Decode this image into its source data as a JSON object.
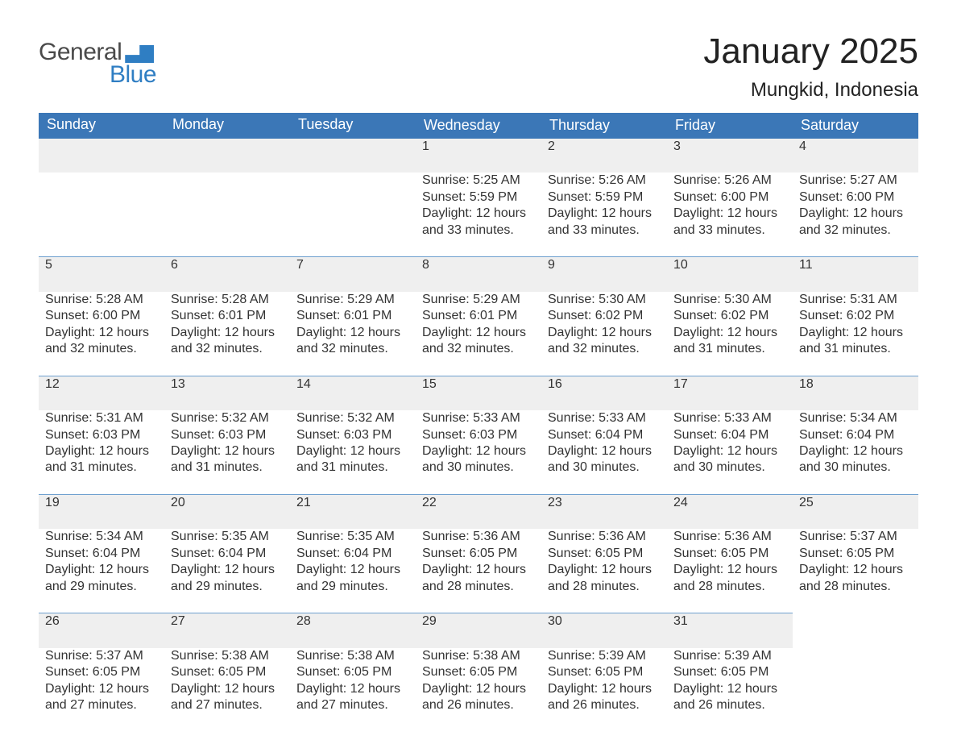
{
  "logo": {
    "word1": "General",
    "word2": "Blue"
  },
  "title": "January 2025",
  "location": "Mungkid, Indonesia",
  "colors": {
    "header_blue": "#3b77b7",
    "logo_blue": "#2f7ec3",
    "row_gray": "#efefef",
    "divider_blue": "#6fa0cf",
    "background": "#ffffff"
  },
  "fonts": {
    "title_size_pt": 33,
    "location_size_pt": 18,
    "header_size_pt": 14,
    "body_size_pt": 12
  },
  "weekday_headers": [
    "Sunday",
    "Monday",
    "Tuesday",
    "Wednesday",
    "Thursday",
    "Friday",
    "Saturday"
  ],
  "labels": {
    "sunrise": "Sunrise: ",
    "sunset": "Sunset: ",
    "daylight": "Daylight: "
  },
  "weeks": [
    [
      null,
      null,
      null,
      {
        "day": "1",
        "sunrise": "5:25 AM",
        "sunset": "5:59 PM",
        "daylight1": "12 hours",
        "daylight2": "and 33 minutes."
      },
      {
        "day": "2",
        "sunrise": "5:26 AM",
        "sunset": "5:59 PM",
        "daylight1": "12 hours",
        "daylight2": "and 33 minutes."
      },
      {
        "day": "3",
        "sunrise": "5:26 AM",
        "sunset": "6:00 PM",
        "daylight1": "12 hours",
        "daylight2": "and 33 minutes."
      },
      {
        "day": "4",
        "sunrise": "5:27 AM",
        "sunset": "6:00 PM",
        "daylight1": "12 hours",
        "daylight2": "and 32 minutes."
      }
    ],
    [
      {
        "day": "5",
        "sunrise": "5:28 AM",
        "sunset": "6:00 PM",
        "daylight1": "12 hours",
        "daylight2": "and 32 minutes."
      },
      {
        "day": "6",
        "sunrise": "5:28 AM",
        "sunset": "6:01 PM",
        "daylight1": "12 hours",
        "daylight2": "and 32 minutes."
      },
      {
        "day": "7",
        "sunrise": "5:29 AM",
        "sunset": "6:01 PM",
        "daylight1": "12 hours",
        "daylight2": "and 32 minutes."
      },
      {
        "day": "8",
        "sunrise": "5:29 AM",
        "sunset": "6:01 PM",
        "daylight1": "12 hours",
        "daylight2": "and 32 minutes."
      },
      {
        "day": "9",
        "sunrise": "5:30 AM",
        "sunset": "6:02 PM",
        "daylight1": "12 hours",
        "daylight2": "and 32 minutes."
      },
      {
        "day": "10",
        "sunrise": "5:30 AM",
        "sunset": "6:02 PM",
        "daylight1": "12 hours",
        "daylight2": "and 31 minutes."
      },
      {
        "day": "11",
        "sunrise": "5:31 AM",
        "sunset": "6:02 PM",
        "daylight1": "12 hours",
        "daylight2": "and 31 minutes."
      }
    ],
    [
      {
        "day": "12",
        "sunrise": "5:31 AM",
        "sunset": "6:03 PM",
        "daylight1": "12 hours",
        "daylight2": "and 31 minutes."
      },
      {
        "day": "13",
        "sunrise": "5:32 AM",
        "sunset": "6:03 PM",
        "daylight1": "12 hours",
        "daylight2": "and 31 minutes."
      },
      {
        "day": "14",
        "sunrise": "5:32 AM",
        "sunset": "6:03 PM",
        "daylight1": "12 hours",
        "daylight2": "and 31 minutes."
      },
      {
        "day": "15",
        "sunrise": "5:33 AM",
        "sunset": "6:03 PM",
        "daylight1": "12 hours",
        "daylight2": "and 30 minutes."
      },
      {
        "day": "16",
        "sunrise": "5:33 AM",
        "sunset": "6:04 PM",
        "daylight1": "12 hours",
        "daylight2": "and 30 minutes."
      },
      {
        "day": "17",
        "sunrise": "5:33 AM",
        "sunset": "6:04 PM",
        "daylight1": "12 hours",
        "daylight2": "and 30 minutes."
      },
      {
        "day": "18",
        "sunrise": "5:34 AM",
        "sunset": "6:04 PM",
        "daylight1": "12 hours",
        "daylight2": "and 30 minutes."
      }
    ],
    [
      {
        "day": "19",
        "sunrise": "5:34 AM",
        "sunset": "6:04 PM",
        "daylight1": "12 hours",
        "daylight2": "and 29 minutes."
      },
      {
        "day": "20",
        "sunrise": "5:35 AM",
        "sunset": "6:04 PM",
        "daylight1": "12 hours",
        "daylight2": "and 29 minutes."
      },
      {
        "day": "21",
        "sunrise": "5:35 AM",
        "sunset": "6:04 PM",
        "daylight1": "12 hours",
        "daylight2": "and 29 minutes."
      },
      {
        "day": "22",
        "sunrise": "5:36 AM",
        "sunset": "6:05 PM",
        "daylight1": "12 hours",
        "daylight2": "and 28 minutes."
      },
      {
        "day": "23",
        "sunrise": "5:36 AM",
        "sunset": "6:05 PM",
        "daylight1": "12 hours",
        "daylight2": "and 28 minutes."
      },
      {
        "day": "24",
        "sunrise": "5:36 AM",
        "sunset": "6:05 PM",
        "daylight1": "12 hours",
        "daylight2": "and 28 minutes."
      },
      {
        "day": "25",
        "sunrise": "5:37 AM",
        "sunset": "6:05 PM",
        "daylight1": "12 hours",
        "daylight2": "and 28 minutes."
      }
    ],
    [
      {
        "day": "26",
        "sunrise": "5:37 AM",
        "sunset": "6:05 PM",
        "daylight1": "12 hours",
        "daylight2": "and 27 minutes."
      },
      {
        "day": "27",
        "sunrise": "5:38 AM",
        "sunset": "6:05 PM",
        "daylight1": "12 hours",
        "daylight2": "and 27 minutes."
      },
      {
        "day": "28",
        "sunrise": "5:38 AM",
        "sunset": "6:05 PM",
        "daylight1": "12 hours",
        "daylight2": "and 27 minutes."
      },
      {
        "day": "29",
        "sunrise": "5:38 AM",
        "sunset": "6:05 PM",
        "daylight1": "12 hours",
        "daylight2": "and 26 minutes."
      },
      {
        "day": "30",
        "sunrise": "5:39 AM",
        "sunset": "6:05 PM",
        "daylight1": "12 hours",
        "daylight2": "and 26 minutes."
      },
      {
        "day": "31",
        "sunrise": "5:39 AM",
        "sunset": "6:05 PM",
        "daylight1": "12 hours",
        "daylight2": "and 26 minutes."
      },
      null
    ]
  ]
}
